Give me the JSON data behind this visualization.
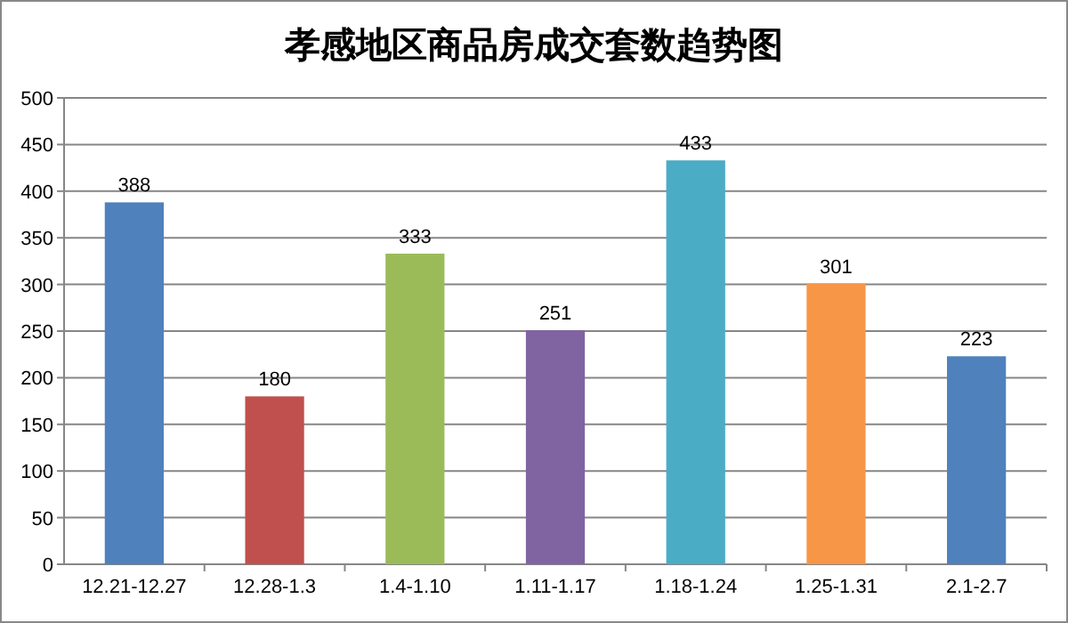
{
  "chart_data": {
    "type": "bar",
    "title": "孝感地区商品房成交套数趋势图",
    "categories": [
      "12.21-12.27",
      "12.28-1.3",
      "1.4-1.10",
      "1.11-1.17",
      "1.18-1.24",
      "1.25-1.31",
      "2.1-2.7"
    ],
    "values": [
      388,
      180,
      333,
      251,
      433,
      301,
      223
    ],
    "colors": [
      "#4f81bd",
      "#c0504d",
      "#9bbb59",
      "#8064a2",
      "#4bacc6",
      "#f79646",
      "#4f81bd"
    ],
    "ylim": [
      0,
      500
    ],
    "yticks": [
      0,
      50,
      100,
      150,
      200,
      250,
      300,
      350,
      400,
      450,
      500
    ],
    "grid": "y",
    "data_labels": true
  }
}
